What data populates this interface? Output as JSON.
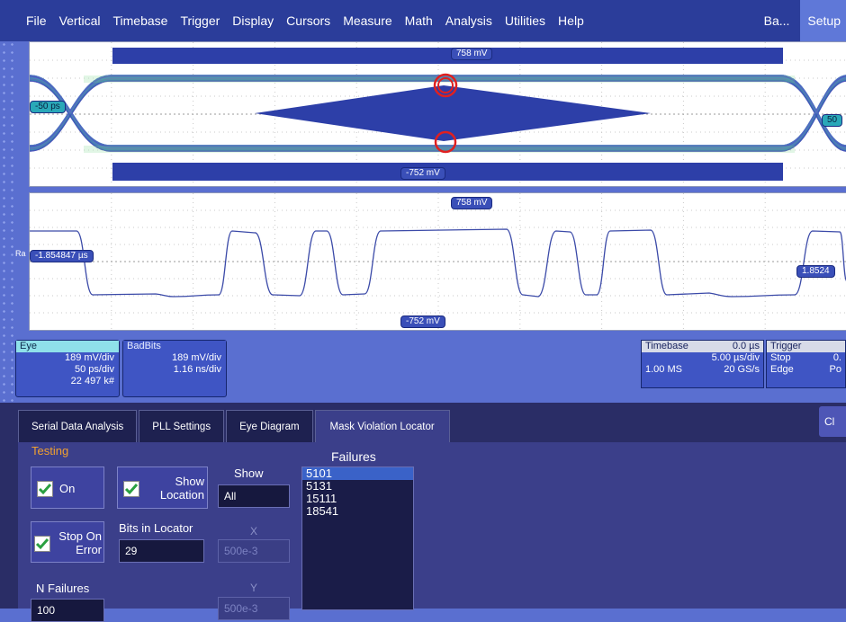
{
  "menu": {
    "items": [
      "File",
      "Vertical",
      "Timebase",
      "Trigger",
      "Display",
      "Cursors",
      "Measure",
      "Math",
      "Analysis",
      "Utilities",
      "Help"
    ],
    "right_label": "Ba...",
    "setup_label": "Setup"
  },
  "eye_panel": {
    "top_mask_label": "758 mV",
    "bottom_mask_label": "-752 mV",
    "left_label": "-50 ps",
    "right_label": "50"
  },
  "wave_panel": {
    "top_label": "758 mV",
    "bottom_label": "-752 mV",
    "left_cursor_label": "-1.854847 µs",
    "right_cursor_label": "1.8524",
    "left_marker": "Ra"
  },
  "traces": {
    "eye": {
      "title": "Eye",
      "lines": [
        "189 mV/div",
        "50 ps/div",
        "22 497 k#"
      ]
    },
    "badbits": {
      "title": "BadBits",
      "lines": [
        "189 mV/div",
        "1.16 ns/div"
      ]
    }
  },
  "timebase": {
    "title": "Timebase",
    "offset": "0.0 µs",
    "per_div": "5.00 µs/div",
    "samples": "1.00 MS",
    "rate": "20 GS/s"
  },
  "trigger": {
    "title": "Trigger",
    "mode": "Stop",
    "type": "Edge",
    "level": "0.",
    "slope": "Po"
  },
  "dialog": {
    "tabs": [
      "Serial Data Analysis",
      "PLL Settings",
      "Eye Diagram",
      "Mask Violation Locator"
    ],
    "close_label": "Cl",
    "testing_label": "Testing",
    "on_label": "On",
    "show_location_label": "Show Location",
    "show_label": "Show",
    "show_value": "All",
    "stop_on_error_label": "Stop On Error",
    "bits_in_locator_label": "Bits in Locator",
    "bits_in_locator_value": "29",
    "x_label": "X",
    "x_value": "500e-3",
    "y_label": "Y",
    "y_value": "500e-3",
    "n_failures_label": "N Failures",
    "n_failures_value": "100",
    "failures_label": "Failures",
    "failures": [
      "5101",
      "5131",
      "15111",
      "18541"
    ]
  }
}
